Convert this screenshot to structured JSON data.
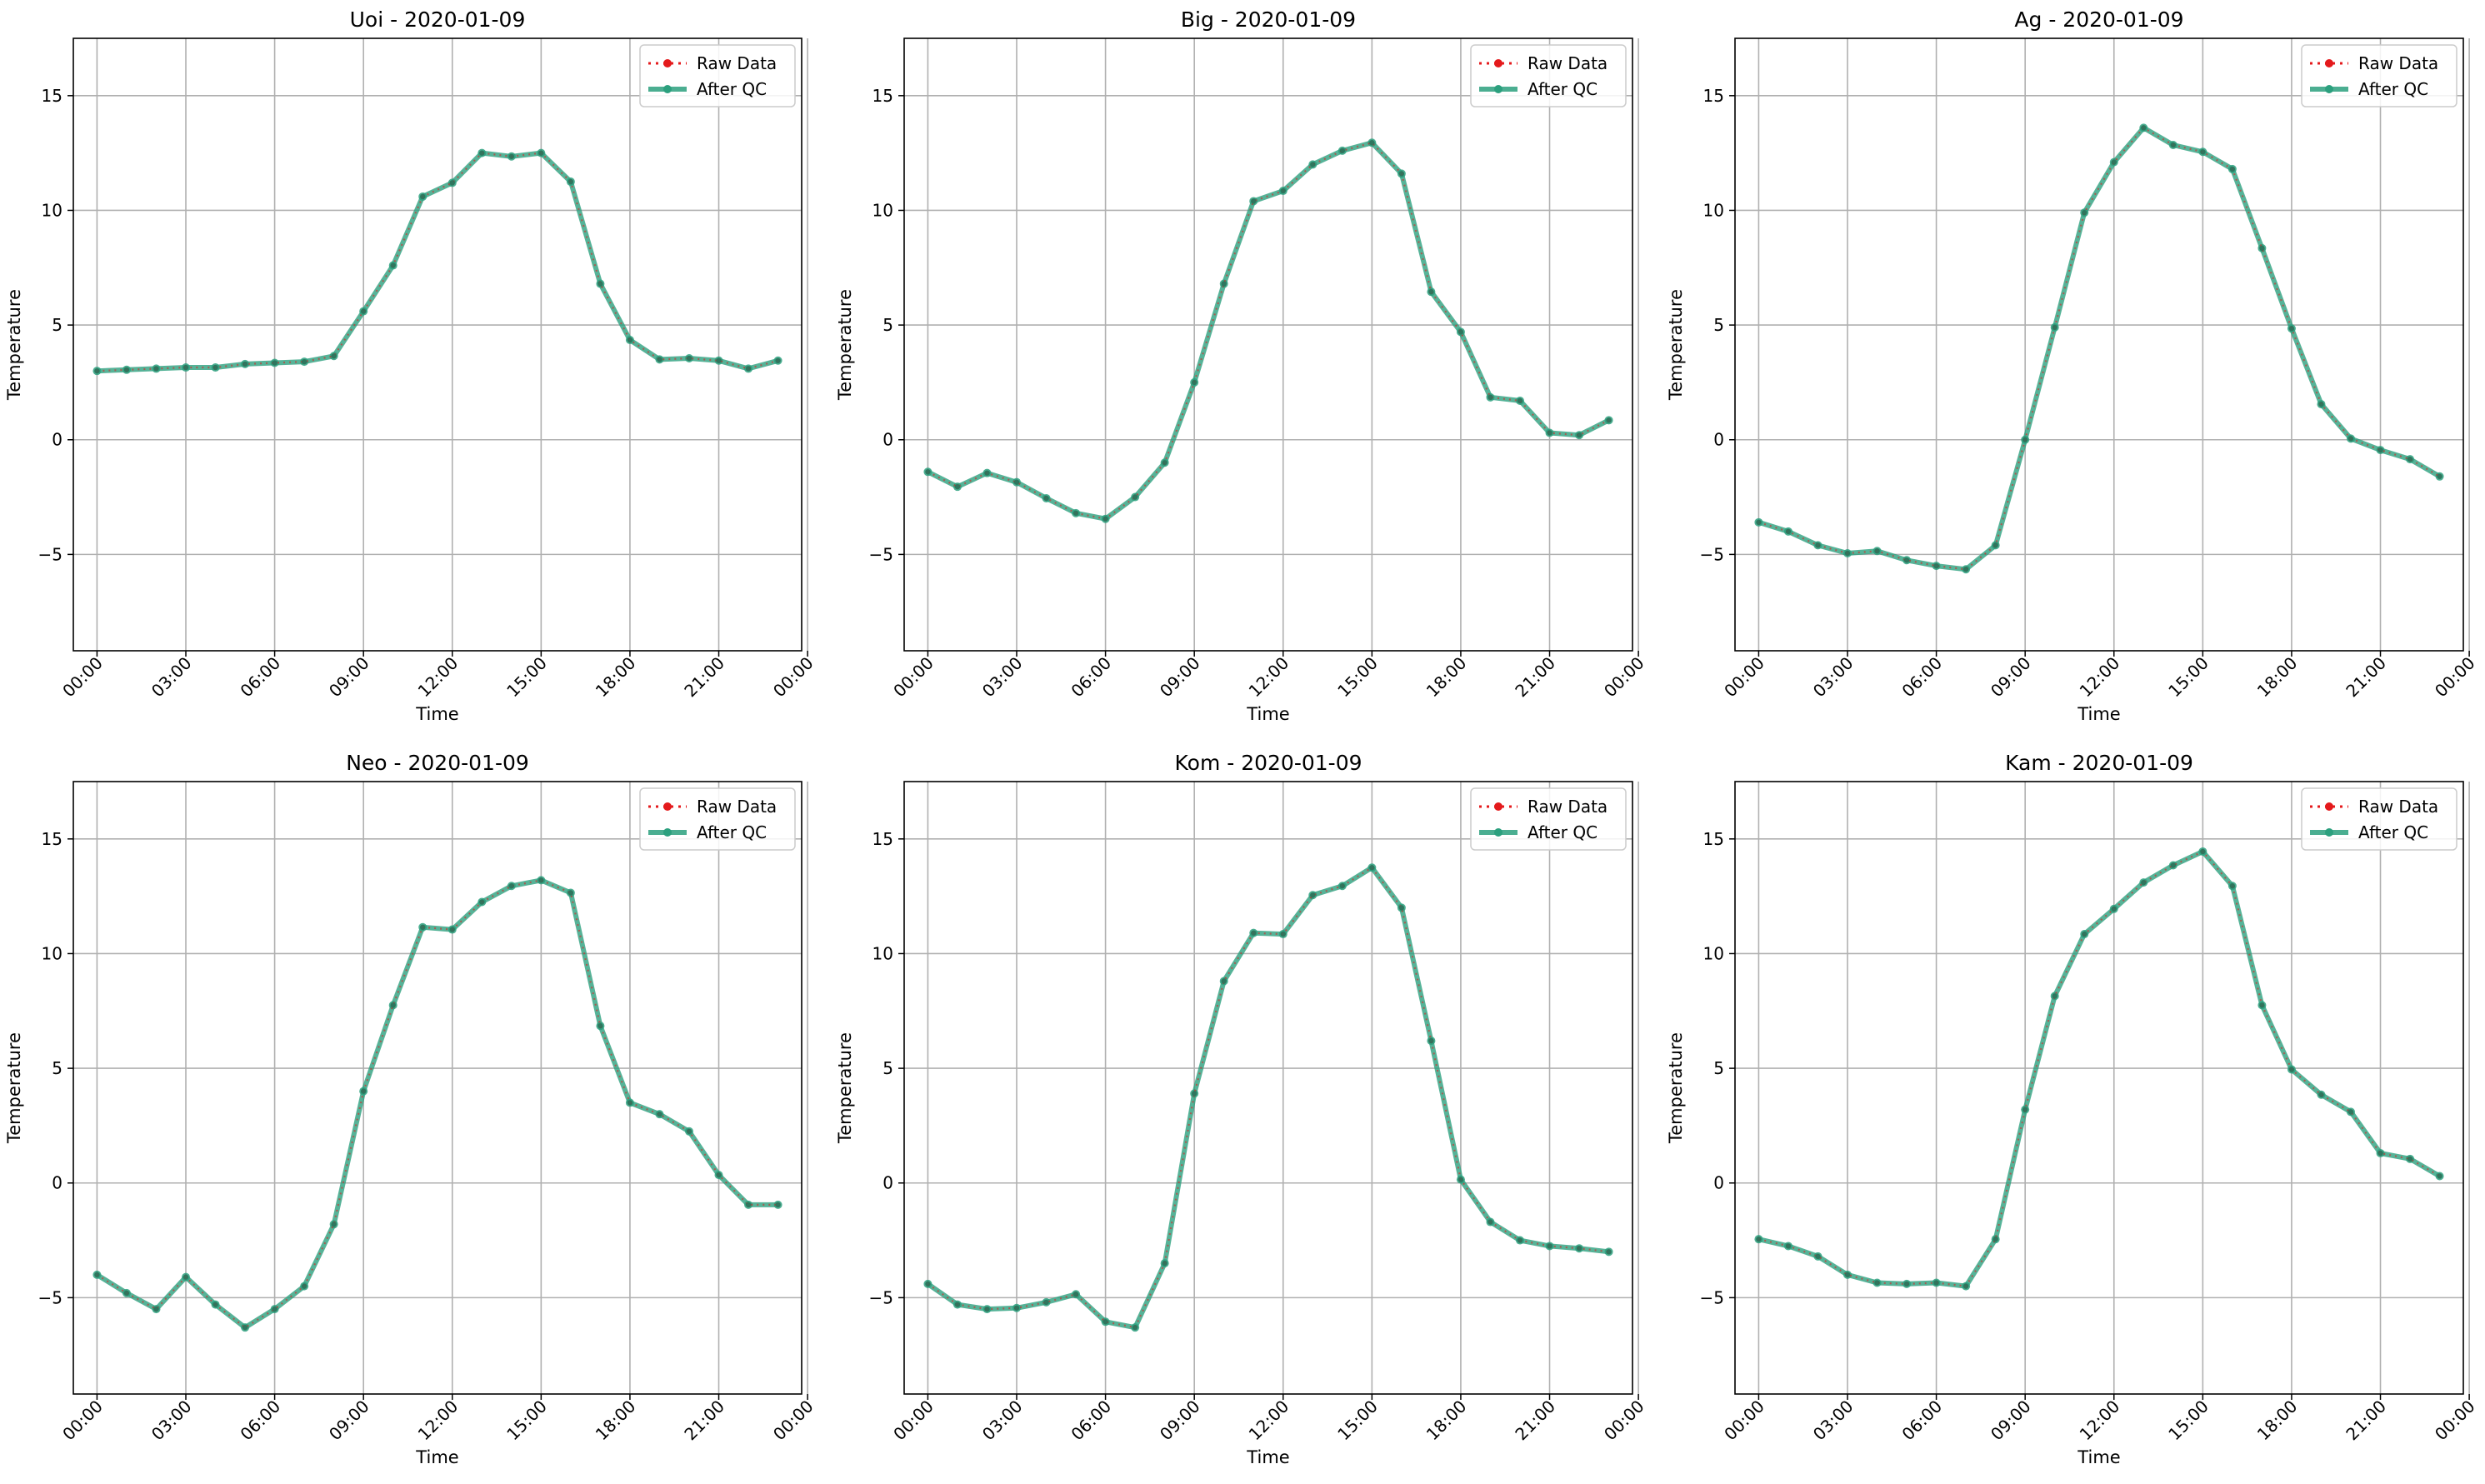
{
  "chart_data": [
    {
      "type": "line",
      "title": "Uoi - 2020-01-09",
      "xlabel": "Time",
      "ylabel": "Temperature",
      "ylim": [
        -9.2,
        17.5
      ],
      "xlim": [
        -0.8,
        23.8
      ],
      "x_hours": [
        0,
        1,
        2,
        3,
        4,
        5,
        6,
        7,
        8,
        9,
        10,
        11,
        12,
        13,
        14,
        15,
        16,
        17,
        18,
        19,
        20,
        21,
        22,
        23
      ],
      "xticks": [
        "00:00",
        "03:00",
        "06:00",
        "09:00",
        "12:00",
        "15:00",
        "18:00",
        "21:00",
        "00:00"
      ],
      "yticks": [
        "−5",
        "0",
        "5",
        "10",
        "15"
      ],
      "legend_position": "upper right",
      "grid": true,
      "series": [
        {
          "name": "Raw Data",
          "color": "#e41a1c",
          "values": [
            3.0,
            3.05,
            3.1,
            3.15,
            3.15,
            3.3,
            3.35,
            3.4,
            3.65,
            5.6,
            7.6,
            10.6,
            11.2,
            12.5,
            12.35,
            12.5,
            11.25,
            6.8,
            4.35,
            3.5,
            3.55,
            3.45,
            3.1,
            3.45
          ]
        },
        {
          "name": "After QC",
          "color": "#2ca07e",
          "values": [
            3.0,
            3.05,
            3.1,
            3.15,
            3.15,
            3.3,
            3.35,
            3.4,
            3.65,
            5.6,
            7.6,
            10.6,
            11.2,
            12.5,
            12.35,
            12.5,
            11.25,
            6.8,
            4.35,
            3.5,
            3.55,
            3.45,
            3.1,
            3.45
          ]
        }
      ]
    },
    {
      "type": "line",
      "title": "Big - 2020-01-09",
      "xlabel": "Time",
      "ylabel": "Temperature",
      "ylim": [
        -9.2,
        17.5
      ],
      "xlim": [
        -0.8,
        23.8
      ],
      "x_hours": [
        0,
        1,
        2,
        3,
        4,
        5,
        6,
        7,
        8,
        9,
        10,
        11,
        12,
        13,
        14,
        15,
        16,
        17,
        18,
        19,
        20,
        21,
        22,
        23
      ],
      "xticks": [
        "00:00",
        "03:00",
        "06:00",
        "09:00",
        "12:00",
        "15:00",
        "18:00",
        "21:00",
        "00:00"
      ],
      "yticks": [
        "−5",
        "0",
        "5",
        "10",
        "15"
      ],
      "legend_position": "upper right",
      "grid": true,
      "series": [
        {
          "name": "Raw Data",
          "color": "#e41a1c",
          "values": [
            -1.4,
            -2.05,
            -1.45,
            -1.85,
            -2.55,
            -3.2,
            -3.45,
            -2.5,
            -1.0,
            2.5,
            6.8,
            10.4,
            10.85,
            12.0,
            12.6,
            12.95,
            11.6,
            6.45,
            4.7,
            1.85,
            1.7,
            0.3,
            0.2,
            0.85
          ]
        },
        {
          "name": "After QC",
          "color": "#2ca07e",
          "values": [
            -1.4,
            -2.05,
            -1.45,
            -1.85,
            -2.55,
            -3.2,
            -3.45,
            -2.5,
            -1.0,
            2.5,
            6.8,
            10.4,
            10.85,
            12.0,
            12.6,
            12.95,
            11.6,
            6.45,
            4.7,
            1.85,
            1.7,
            0.3,
            0.2,
            0.85
          ]
        }
      ]
    },
    {
      "type": "line",
      "title": "Ag - 2020-01-09",
      "xlabel": "Time",
      "ylabel": "Temperature",
      "ylim": [
        -9.2,
        17.5
      ],
      "xlim": [
        -0.8,
        23.8
      ],
      "x_hours": [
        0,
        1,
        2,
        3,
        4,
        5,
        6,
        7,
        8,
        9,
        10,
        11,
        12,
        13,
        14,
        15,
        16,
        17,
        18,
        19,
        20,
        21,
        22,
        23
      ],
      "xticks": [
        "00:00",
        "03:00",
        "06:00",
        "09:00",
        "12:00",
        "15:00",
        "18:00",
        "21:00",
        "00:00"
      ],
      "yticks": [
        "−5",
        "0",
        "5",
        "10",
        "15"
      ],
      "legend_position": "upper right",
      "grid": true,
      "series": [
        {
          "name": "Raw Data",
          "color": "#e41a1c",
          "values": [
            -3.6,
            -4.0,
            -4.6,
            -4.95,
            -4.85,
            -5.25,
            -5.5,
            -5.65,
            -4.6,
            0.0,
            4.9,
            9.9,
            12.1,
            13.6,
            12.85,
            12.55,
            11.8,
            8.35,
            4.85,
            1.55,
            0.05,
            -0.45,
            -0.85,
            -1.6
          ]
        },
        {
          "name": "After QC",
          "color": "#2ca07e",
          "values": [
            -3.6,
            -4.0,
            -4.6,
            -4.95,
            -4.85,
            -5.25,
            -5.5,
            -5.65,
            -4.6,
            0.0,
            4.9,
            9.9,
            12.1,
            13.6,
            12.85,
            12.55,
            11.8,
            8.35,
            4.85,
            1.55,
            0.05,
            -0.45,
            -0.85,
            -1.6
          ]
        }
      ]
    },
    {
      "type": "line",
      "title": "Neo - 2020-01-09",
      "xlabel": "Time",
      "ylabel": "Temperature",
      "ylim": [
        -9.2,
        17.5
      ],
      "xlim": [
        -0.8,
        23.8
      ],
      "x_hours": [
        0,
        1,
        2,
        3,
        4,
        5,
        6,
        7,
        8,
        9,
        10,
        11,
        12,
        13,
        14,
        15,
        16,
        17,
        18,
        19,
        20,
        21,
        22,
        23
      ],
      "xticks": [
        "00:00",
        "03:00",
        "06:00",
        "09:00",
        "12:00",
        "15:00",
        "18:00",
        "21:00",
        "00:00"
      ],
      "yticks": [
        "−5",
        "0",
        "5",
        "10",
        "15"
      ],
      "legend_position": "upper right",
      "grid": true,
      "series": [
        {
          "name": "Raw Data",
          "color": "#e41a1c",
          "values": [
            -4.0,
            -4.8,
            -5.5,
            -4.1,
            -5.3,
            -6.3,
            -5.5,
            -4.5,
            -1.8,
            4.0,
            7.75,
            11.15,
            11.05,
            12.25,
            12.95,
            13.2,
            12.65,
            6.85,
            3.5,
            3.0,
            2.25,
            0.35,
            -0.95,
            -0.95
          ]
        },
        {
          "name": "After QC",
          "color": "#2ca07e",
          "values": [
            -4.0,
            -4.8,
            -5.5,
            -4.1,
            -5.3,
            -6.3,
            -5.5,
            -4.5,
            -1.8,
            4.0,
            7.75,
            11.15,
            11.05,
            12.25,
            12.95,
            13.2,
            12.65,
            6.85,
            3.5,
            3.0,
            2.25,
            0.35,
            -0.95,
            -0.95
          ]
        }
      ]
    },
    {
      "type": "line",
      "title": "Kom - 2020-01-09",
      "xlabel": "Time",
      "ylabel": "Temperature",
      "ylim": [
        -9.2,
        17.5
      ],
      "xlim": [
        -0.8,
        23.8
      ],
      "x_hours": [
        0,
        1,
        2,
        3,
        4,
        5,
        6,
        7,
        8,
        9,
        10,
        11,
        12,
        13,
        14,
        15,
        16,
        17,
        18,
        19,
        20,
        21,
        22,
        23
      ],
      "xticks": [
        "00:00",
        "03:00",
        "06:00",
        "09:00",
        "12:00",
        "15:00",
        "18:00",
        "21:00",
        "00:00"
      ],
      "yticks": [
        "−5",
        "0",
        "5",
        "10",
        "15"
      ],
      "legend_position": "upper right",
      "grid": true,
      "series": [
        {
          "name": "Raw Data",
          "color": "#e41a1c",
          "values": [
            -4.4,
            -5.3,
            -5.5,
            -5.45,
            -5.2,
            -4.85,
            -6.05,
            -6.3,
            -3.5,
            3.9,
            8.8,
            10.9,
            10.85,
            12.55,
            12.95,
            13.75,
            12.0,
            6.2,
            0.15,
            -1.7,
            -2.5,
            -2.75,
            -2.85,
            -3.0
          ]
        },
        {
          "name": "After QC",
          "color": "#2ca07e",
          "values": [
            -4.4,
            -5.3,
            -5.5,
            -5.45,
            -5.2,
            -4.85,
            -6.05,
            -6.3,
            -3.5,
            3.9,
            8.8,
            10.9,
            10.85,
            12.55,
            12.95,
            13.75,
            12.0,
            6.2,
            0.15,
            -1.7,
            -2.5,
            -2.75,
            -2.85,
            -3.0
          ]
        }
      ]
    },
    {
      "type": "line",
      "title": "Kam - 2020-01-09",
      "xlabel": "Time",
      "ylabel": "Temperature",
      "ylim": [
        -9.2,
        17.5
      ],
      "xlim": [
        -0.8,
        23.8
      ],
      "x_hours": [
        0,
        1,
        2,
        3,
        4,
        5,
        6,
        7,
        8,
        9,
        10,
        11,
        12,
        13,
        14,
        15,
        16,
        17,
        18,
        19,
        20,
        21,
        22,
        23
      ],
      "xticks": [
        "00:00",
        "03:00",
        "06:00",
        "09:00",
        "12:00",
        "15:00",
        "18:00",
        "21:00",
        "00:00"
      ],
      "yticks": [
        "−5",
        "0",
        "5",
        "10",
        "15"
      ],
      "legend_position": "upper right",
      "grid": true,
      "series": [
        {
          "name": "Raw Data",
          "color": "#e41a1c",
          "values": [
            -2.45,
            -2.75,
            -3.2,
            -4.0,
            -4.35,
            -4.4,
            -4.35,
            -4.5,
            -2.45,
            3.2,
            8.15,
            10.85,
            11.95,
            13.1,
            13.85,
            14.45,
            12.95,
            7.75,
            4.95,
            3.85,
            3.1,
            1.3,
            1.05,
            0.3
          ]
        },
        {
          "name": "After QC",
          "color": "#2ca07e",
          "values": [
            -2.45,
            -2.75,
            -3.2,
            -4.0,
            -4.35,
            -4.4,
            -4.35,
            -4.5,
            -2.45,
            3.2,
            8.15,
            10.85,
            11.95,
            13.1,
            13.85,
            14.45,
            12.95,
            7.75,
            4.95,
            3.85,
            3.1,
            1.3,
            1.05,
            0.3
          ]
        }
      ]
    }
  ]
}
